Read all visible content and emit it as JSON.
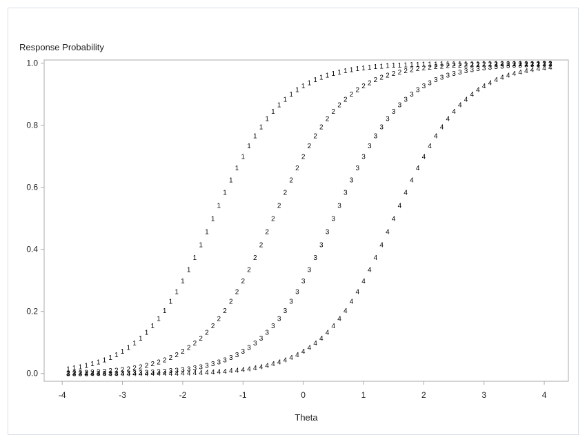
{
  "chart_data": {
    "type": "scatter",
    "title": "",
    "xlabel": "Theta",
    "ylabel": "Response Probability",
    "xlim": [
      -4.0,
      4.0
    ],
    "ylim": [
      0.0,
      1.0
    ],
    "x_ticks": [
      -4,
      -3,
      -2,
      -1,
      0,
      1,
      2,
      3,
      4
    ],
    "y_ticks": [
      "0.0",
      "0.2",
      "0.4",
      "0.6",
      "0.8",
      "1.0"
    ],
    "grid": false,
    "legend": "none",
    "x_grid": {
      "from": -3.9,
      "to": 4.1,
      "step": 0.1
    },
    "series": [
      {
        "marker": "1",
        "model": "logistic",
        "slope": 1.7,
        "location": -1.5
      },
      {
        "marker": "2",
        "model": "logistic",
        "slope": 1.7,
        "location": -0.5
      },
      {
        "marker": "3",
        "model": "logistic",
        "slope": 1.7,
        "location": 0.5
      },
      {
        "marker": "4",
        "model": "logistic",
        "slope": 1.7,
        "location": 1.5
      }
    ]
  },
  "colors": {
    "frame_border": "#d6dde6",
    "axis": "#a9a9a9",
    "text": "#222222",
    "marker": "#000000"
  }
}
